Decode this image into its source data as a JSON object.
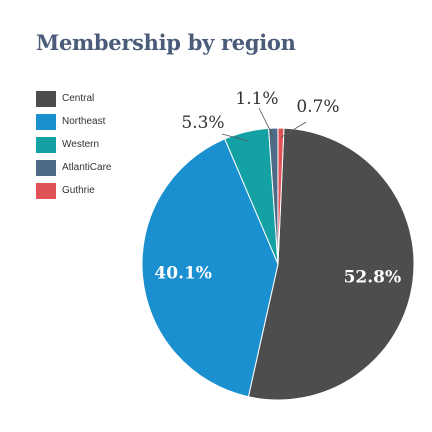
{
  "chart_data": {
    "type": "pie",
    "title": "Membership by region",
    "legend_position": "left",
    "slices": [
      {
        "label": "Central",
        "value": 52.8,
        "display": "52.8%",
        "color": "#4d4d4d"
      },
      {
        "label": "Northeast",
        "value": 40.1,
        "display": "40.1%",
        "color": "#1a90d0"
      },
      {
        "label": "Western",
        "value": 5.3,
        "display": "5.3%",
        "color": "#13a1a4"
      },
      {
        "label": "AtlantiCare",
        "value": 1.1,
        "display": "1.1%",
        "color": "#4e6a86"
      },
      {
        "label": "Guthrie",
        "value": 0.7,
        "display": "0.7%",
        "color": "#e05258"
      }
    ]
  }
}
